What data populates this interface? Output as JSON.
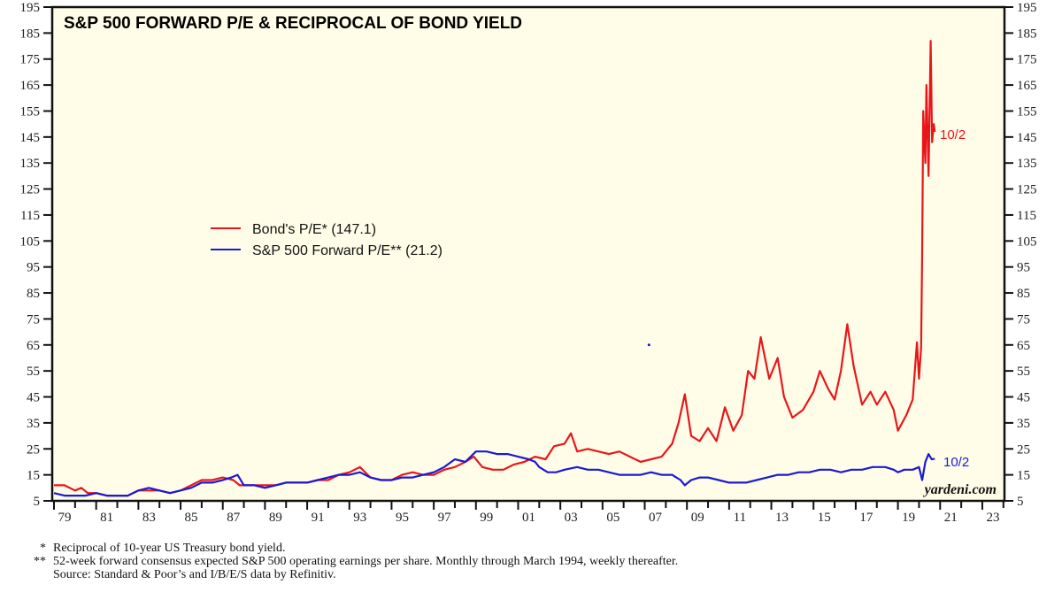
{
  "chart_data": {
    "type": "line",
    "title": "S&P 500 FORWARD P/E & RECIPROCAL OF BOND YIELD",
    "xlabel": "",
    "ylabel": "",
    "xlim": [
      1979,
      2024
    ],
    "ylim": [
      5,
      195
    ],
    "yticks": [
      5,
      15,
      25,
      35,
      45,
      55,
      65,
      75,
      85,
      95,
      105,
      115,
      125,
      135,
      145,
      155,
      165,
      175,
      185,
      195
    ],
    "xticks": [
      {
        "year": 1979,
        "label": "79"
      },
      {
        "year": 1981,
        "label": "81"
      },
      {
        "year": 1983,
        "label": "83"
      },
      {
        "year": 1985,
        "label": "85"
      },
      {
        "year": 1987,
        "label": "87"
      },
      {
        "year": 1989,
        "label": "89"
      },
      {
        "year": 1991,
        "label": "91"
      },
      {
        "year": 1993,
        "label": "93"
      },
      {
        "year": 1995,
        "label": "95"
      },
      {
        "year": 1997,
        "label": "97"
      },
      {
        "year": 1999,
        "label": "99"
      },
      {
        "year": 2001,
        "label": "01"
      },
      {
        "year": 2003,
        "label": "03"
      },
      {
        "year": 2005,
        "label": "05"
      },
      {
        "year": 2007,
        "label": "07"
      },
      {
        "year": 2009,
        "label": "09"
      },
      {
        "year": 2011,
        "label": "11"
      },
      {
        "year": 2013,
        "label": "13"
      },
      {
        "year": 2015,
        "label": "15"
      },
      {
        "year": 2017,
        "label": "17"
      },
      {
        "year": 2019,
        "label": "19"
      },
      {
        "year": 2021,
        "label": "21"
      },
      {
        "year": 2023,
        "label": "23"
      }
    ],
    "grid": false,
    "legend_position": "center-left",
    "series": [
      {
        "name": "Bond's P/E* (147.1)",
        "color": "#e8161b",
        "end_label": "10/2",
        "x": [
          1979.0,
          1979.5,
          1980.0,
          1980.3,
          1980.6,
          1981.0,
          1981.5,
          1982.0,
          1982.5,
          1983.0,
          1983.5,
          1984.0,
          1984.5,
          1985.0,
          1985.5,
          1986.0,
          1986.5,
          1987.0,
          1987.5,
          1987.8,
          1988.0,
          1988.5,
          1989.0,
          1989.5,
          1990.0,
          1990.5,
          1991.0,
          1991.5,
          1992.0,
          1992.5,
          1993.0,
          1993.5,
          1994.0,
          1994.5,
          1995.0,
          1995.5,
          1996.0,
          1996.5,
          1997.0,
          1997.5,
          1998.0,
          1998.5,
          1998.9,
          1999.3,
          1999.8,
          2000.3,
          2000.8,
          2001.3,
          2001.8,
          2002.3,
          2002.7,
          2003.2,
          2003.5,
          2003.8,
          2004.3,
          2004.8,
          2005.3,
          2005.8,
          2006.3,
          2006.8,
          2007.3,
          2007.8,
          2008.3,
          2008.6,
          2008.9,
          2009.2,
          2009.6,
          2010.0,
          2010.4,
          2010.8,
          2011.2,
          2011.6,
          2011.9,
          2012.2,
          2012.5,
          2012.9,
          2013.3,
          2013.6,
          2014.0,
          2014.5,
          2015.0,
          2015.3,
          2015.7,
          2016.0,
          2016.3,
          2016.6,
          2016.9,
          2017.3,
          2017.7,
          2018.0,
          2018.4,
          2018.8,
          2019.0,
          2019.4,
          2019.7,
          2019.9,
          2020.0,
          2020.1,
          2020.15,
          2020.2,
          2020.3,
          2020.35,
          2020.45,
          2020.55,
          2020.62,
          2020.7,
          2020.75
        ],
        "values": [
          11,
          11,
          9,
          10,
          8,
          8,
          7,
          7,
          7,
          9,
          9,
          9,
          8,
          9,
          11,
          13,
          13,
          14,
          13,
          11,
          11,
          11,
          11,
          11,
          12,
          12,
          12,
          13,
          13,
          15,
          16,
          18,
          14,
          13,
          13,
          15,
          16,
          15,
          15,
          17,
          18,
          20,
          22,
          18,
          17,
          17,
          19,
          20,
          22,
          21,
          26,
          27,
          31,
          24,
          25,
          24,
          23,
          24,
          22,
          20,
          21,
          22,
          27,
          35,
          46,
          30,
          28,
          33,
          28,
          41,
          32,
          38,
          55,
          52,
          68,
          52,
          60,
          45,
          37,
          40,
          47,
          55,
          48,
          44,
          55,
          73,
          57,
          42,
          47,
          42,
          47,
          40,
          32,
          38,
          44,
          66,
          52,
          64,
          100,
          155,
          135,
          165,
          130,
          182,
          143,
          150,
          147
        ]
      },
      {
        "name": "S&P 500 Forward P/E** (21.2)",
        "color": "#1a1ad6",
        "end_label": "10/2",
        "x": [
          1979.0,
          1979.5,
          1980.0,
          1980.5,
          1981.0,
          1981.5,
          1982.0,
          1982.5,
          1983.0,
          1983.5,
          1984.0,
          1984.5,
          1985.0,
          1985.5,
          1986.0,
          1986.5,
          1987.0,
          1987.4,
          1987.7,
          1988.0,
          1988.5,
          1989.0,
          1989.5,
          1990.0,
          1990.5,
          1991.0,
          1991.5,
          1992.0,
          1992.5,
          1993.0,
          1993.5,
          1994.0,
          1994.5,
          1995.0,
          1995.5,
          1996.0,
          1996.5,
          1997.0,
          1997.5,
          1998.0,
          1998.5,
          1999.0,
          1999.5,
          2000.0,
          2000.5,
          2001.0,
          2001.5,
          2001.8,
          2002.0,
          2002.4,
          2002.8,
          2003.2,
          2003.8,
          2004.3,
          2004.8,
          2005.3,
          2005.8,
          2006.3,
          2006.8,
          2007.3,
          2007.8,
          2008.3,
          2008.7,
          2008.9,
          2009.2,
          2009.6,
          2010.0,
          2010.5,
          2011.0,
          2011.4,
          2011.8,
          2012.3,
          2012.8,
          2013.3,
          2013.8,
          2014.3,
          2014.8,
          2015.3,
          2015.8,
          2016.3,
          2016.8,
          2017.3,
          2017.8,
          2018.0,
          2018.4,
          2018.8,
          2019.0,
          2019.3,
          2019.7,
          2020.0,
          2020.15,
          2020.3,
          2020.45,
          2020.6,
          2020.75
        ],
        "values": [
          8,
          7,
          7,
          7,
          8,
          7,
          7,
          7,
          9,
          10,
          9,
          8,
          9,
          10,
          12,
          12,
          13,
          14,
          15,
          11,
          11,
          10,
          11,
          12,
          12,
          12,
          13,
          14,
          15,
          15,
          16,
          14,
          13,
          13,
          14,
          14,
          15,
          16,
          18,
          21,
          20,
          24,
          24,
          23,
          23,
          22,
          21,
          20,
          18,
          16,
          16,
          17,
          18,
          17,
          17,
          16,
          15,
          15,
          15,
          16,
          15,
          15,
          13,
          11,
          13,
          14,
          14,
          13,
          12,
          12,
          12,
          13,
          14,
          15,
          15,
          16,
          16,
          17,
          17,
          16,
          17,
          17,
          18,
          18,
          18,
          17,
          16,
          17,
          17,
          18,
          13,
          20,
          23,
          21,
          21.2
        ]
      }
    ],
    "annotations": [
      "10/2",
      "10/2",
      "yardeni.com"
    ]
  },
  "footnotes": [
    {
      "mark": "*",
      "text": "Reciprocal of 10-year US Treasury bond yield."
    },
    {
      "mark": "**",
      "text": "52-week forward consensus expected S&P 500 operating earnings per share. Monthly through March 1994, weekly thereafter."
    },
    {
      "mark": "",
      "text": "Source: Standard & Poor’s and I/B/E/S data by Refinitiv."
    }
  ],
  "colors": {
    "plot_bg": "#fffde8",
    "frame": "#111111"
  }
}
